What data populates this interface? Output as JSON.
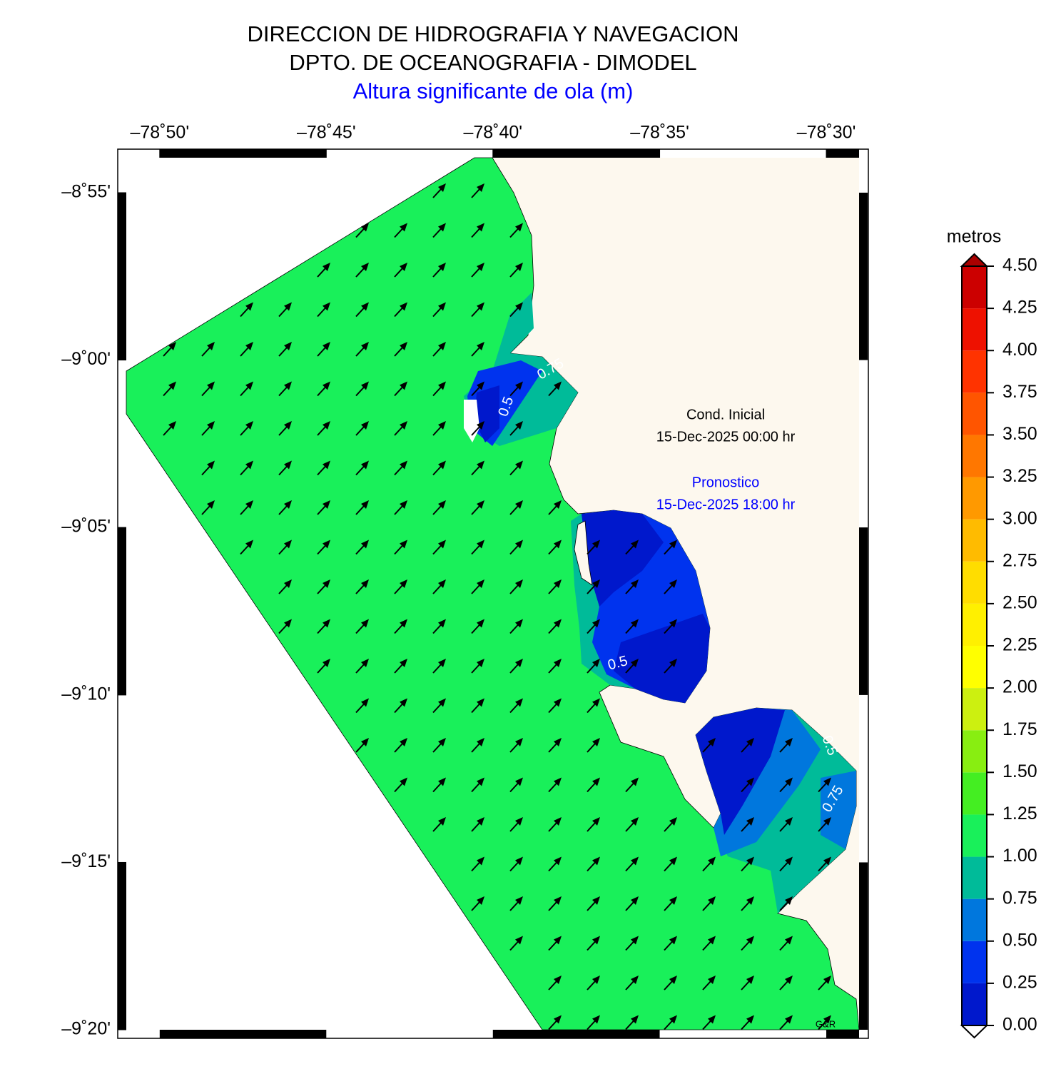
{
  "header": {
    "line1": "DIRECCION DE HIDROGRAFIA Y NAVEGACION",
    "line2": "DPTO. DE OCEANOGRAFIA - DIMODEL",
    "subtitle": "Altura significante de ola (m)"
  },
  "map": {
    "xlim": [
      -78.85,
      -78.4836
    ],
    "ylim": [
      -9.3333,
      -8.8993
    ],
    "xticks": [
      {
        "value": -78.8333,
        "label": "–78˚50'"
      },
      {
        "value": -78.75,
        "label": "–78˚45'"
      },
      {
        "value": -78.6667,
        "label": "–78˚40'"
      },
      {
        "value": -78.5833,
        "label": "–78˚35'"
      },
      {
        "value": -78.5,
        "label": "–78˚30'"
      }
    ],
    "yticks": [
      {
        "value": -8.9167,
        "label": "–8˚55'"
      },
      {
        "value": -9.0,
        "label": "–9˚00'"
      },
      {
        "value": -9.0833,
        "label": "–9˚05'"
      },
      {
        "value": -9.1667,
        "label": "–9˚10'"
      },
      {
        "value": -9.25,
        "label": "–9˚15'"
      },
      {
        "value": -9.3333,
        "label": "–9˚20'"
      }
    ],
    "annotations": {
      "cond": "Cond. Inicial",
      "cond_date": "15-Dec-2025 00:00 hr",
      "forecast": "Pronostico",
      "forecast_date": "15-Dec-2025 18:00 hr"
    },
    "contour_labels": [
      "0.5",
      "0.75",
      "0.5",
      "0.75",
      "0.5"
    ],
    "credit": "G&R"
  },
  "colorbar": {
    "title": "metros",
    "ticks": [
      {
        "value": 0,
        "label": "0.00"
      },
      {
        "value": 0.25,
        "label": "0.25"
      },
      {
        "value": 0.5,
        "label": "0.50"
      },
      {
        "value": 0.75,
        "label": "0.75"
      },
      {
        "value": 1,
        "label": "1.00"
      },
      {
        "value": 1.25,
        "label": "1.25"
      },
      {
        "value": 1.5,
        "label": "1.50"
      },
      {
        "value": 1.75,
        "label": "1.75"
      },
      {
        "value": 2,
        "label": "2.00"
      },
      {
        "value": 2.25,
        "label": "2.25"
      },
      {
        "value": 2.5,
        "label": "2.50"
      },
      {
        "value": 2.75,
        "label": "2.75"
      },
      {
        "value": 3,
        "label": "3.00"
      },
      {
        "value": 3.25,
        "label": "3.25"
      },
      {
        "value": 3.5,
        "label": "3.50"
      },
      {
        "value": 3.75,
        "label": "3.75"
      },
      {
        "value": 4,
        "label": "4.00"
      },
      {
        "value": 4.25,
        "label": "4.25"
      },
      {
        "value": 4.5,
        "label": "4.50"
      }
    ],
    "colors": [
      "#0018cc",
      "#0033ee",
      "#0077dd",
      "#00bb99",
      "#19f05a",
      "#44ee22",
      "#88ee11",
      "#ccf010",
      "#ffff00",
      "#fff000",
      "#ffdd00",
      "#ffbb00",
      "#ff9900",
      "#ff7700",
      "#ff5500",
      "#ff3300",
      "#ee1100",
      "#cc0000"
    ]
  }
}
